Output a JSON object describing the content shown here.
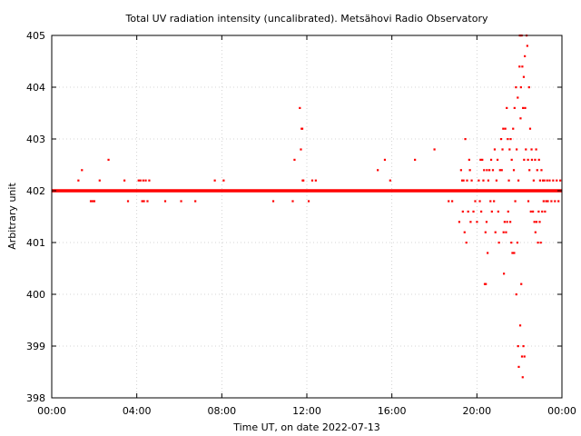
{
  "chart_data": {
    "type": "scatter",
    "title": "Total UV radiation intensity (uncalibrated). Metsähovi Radio Observatory",
    "xlabel": "Time UT, on date 2022-07-13",
    "ylabel": "Arbitrary unit",
    "xlim": [
      "00:00",
      "24:00"
    ],
    "ylim": [
      398,
      405
    ],
    "grid": true,
    "marker_color": "#ff0000",
    "x_ticks": [
      "00:00",
      "04:00",
      "08:00",
      "12:00",
      "16:00",
      "20:00",
      "00:00"
    ],
    "y_ticks": [
      "398",
      "399",
      "400",
      "401",
      "402",
      "403",
      "404",
      "405"
    ],
    "baseline": {
      "value": 402.0,
      "from": "00:00",
      "to": "24:00"
    },
    "points": [
      {
        "x": "01:15",
        "y": 402.2
      },
      {
        "x": "01:25",
        "y": 402.4
      },
      {
        "x": "01:50",
        "y": 401.8
      },
      {
        "x": "01:55",
        "y": 401.8
      },
      {
        "x": "02:00",
        "y": 401.8
      },
      {
        "x": "02:15",
        "y": 402.2
      },
      {
        "x": "02:40",
        "y": 402.6
      },
      {
        "x": "03:25",
        "y": 402.2
      },
      {
        "x": "03:35",
        "y": 401.8
      },
      {
        "x": "04:05",
        "y": 402.2
      },
      {
        "x": "04:10",
        "y": 402.2
      },
      {
        "x": "04:15",
        "y": 401.8
      },
      {
        "x": "04:18",
        "y": 402.2
      },
      {
        "x": "04:20",
        "y": 401.8
      },
      {
        "x": "04:25",
        "y": 402.2
      },
      {
        "x": "04:30",
        "y": 401.8
      },
      {
        "x": "04:35",
        "y": 402.2
      },
      {
        "x": "05:20",
        "y": 401.8
      },
      {
        "x": "06:05",
        "y": 401.8
      },
      {
        "x": "06:45",
        "y": 401.8
      },
      {
        "x": "07:40",
        "y": 402.2
      },
      {
        "x": "08:05",
        "y": 402.2
      },
      {
        "x": "10:25",
        "y": 401.8
      },
      {
        "x": "11:20",
        "y": 401.8
      },
      {
        "x": "11:25",
        "y": 402.6
      },
      {
        "x": "11:40",
        "y": 403.6
      },
      {
        "x": "11:43",
        "y": 402.8
      },
      {
        "x": "11:45",
        "y": 403.2
      },
      {
        "x": "11:47",
        "y": 403.2
      },
      {
        "x": "11:48",
        "y": 402.2
      },
      {
        "x": "11:50",
        "y": 402.2
      },
      {
        "x": "12:05",
        "y": 401.8
      },
      {
        "x": "12:15",
        "y": 402.2
      },
      {
        "x": "12:25",
        "y": 402.2
      },
      {
        "x": "15:20",
        "y": 402.4
      },
      {
        "x": "15:40",
        "y": 402.6
      },
      {
        "x": "15:55",
        "y": 402.2
      },
      {
        "x": "17:05",
        "y": 402.6
      },
      {
        "x": "18:00",
        "y": 402.8
      },
      {
        "x": "18:40",
        "y": 401.8
      },
      {
        "x": "18:50",
        "y": 401.8
      },
      {
        "x": "19:10",
        "y": 401.4
      },
      {
        "x": "19:15",
        "y": 402.4
      },
      {
        "x": "19:18",
        "y": 402.2
      },
      {
        "x": "19:20",
        "y": 401.6
      },
      {
        "x": "19:22",
        "y": 402.2
      },
      {
        "x": "19:25",
        "y": 401.2
      },
      {
        "x": "19:27",
        "y": 403.0
      },
      {
        "x": "19:30",
        "y": 401.0
      },
      {
        "x": "19:32",
        "y": 402.2
      },
      {
        "x": "19:35",
        "y": 401.6
      },
      {
        "x": "19:38",
        "y": 402.6
      },
      {
        "x": "19:40",
        "y": 402.4
      },
      {
        "x": "19:42",
        "y": 401.4
      },
      {
        "x": "19:45",
        "y": 402.2
      },
      {
        "x": "19:50",
        "y": 401.6
      },
      {
        "x": "19:55",
        "y": 401.8
      },
      {
        "x": "20:00",
        "y": 401.4
      },
      {
        "x": "20:05",
        "y": 402.2
      },
      {
        "x": "20:08",
        "y": 401.8
      },
      {
        "x": "20:10",
        "y": 402.6
      },
      {
        "x": "20:12",
        "y": 401.6
      },
      {
        "x": "20:15",
        "y": 402.6
      },
      {
        "x": "20:18",
        "y": 402.2
      },
      {
        "x": "20:20",
        "y": 402.4
      },
      {
        "x": "20:22",
        "y": 400.2
      },
      {
        "x": "20:24",
        "y": 401.2
      },
      {
        "x": "20:25",
        "y": 400.2
      },
      {
        "x": "20:27",
        "y": 401.4
      },
      {
        "x": "20:28",
        "y": 402.4
      },
      {
        "x": "20:30",
        "y": 400.8
      },
      {
        "x": "20:32",
        "y": 402.2
      },
      {
        "x": "20:35",
        "y": 402.4
      },
      {
        "x": "20:38",
        "y": 401.8
      },
      {
        "x": "20:40",
        "y": 402.6
      },
      {
        "x": "20:42",
        "y": 401.6
      },
      {
        "x": "20:45",
        "y": 402.4
      },
      {
        "x": "20:48",
        "y": 401.8
      },
      {
        "x": "20:50",
        "y": 402.8
      },
      {
        "x": "20:52",
        "y": 401.2
      },
      {
        "x": "20:55",
        "y": 402.2
      },
      {
        "x": "20:58",
        "y": 402.6
      },
      {
        "x": "21:00",
        "y": 401.6
      },
      {
        "x": "21:02",
        "y": 401.0
      },
      {
        "x": "21:05",
        "y": 402.4
      },
      {
        "x": "21:08",
        "y": 403.0
      },
      {
        "x": "21:10",
        "y": 402.4
      },
      {
        "x": "21:12",
        "y": 402.8
      },
      {
        "x": "21:14",
        "y": 403.2
      },
      {
        "x": "21:15",
        "y": 401.2
      },
      {
        "x": "21:16",
        "y": 400.4
      },
      {
        "x": "21:18",
        "y": 401.4
      },
      {
        "x": "21:20",
        "y": 403.2
      },
      {
        "x": "21:22",
        "y": 401.2
      },
      {
        "x": "21:24",
        "y": 403.6
      },
      {
        "x": "21:25",
        "y": 401.4
      },
      {
        "x": "21:27",
        "y": 403.0
      },
      {
        "x": "21:28",
        "y": 401.6
      },
      {
        "x": "21:30",
        "y": 402.2
      },
      {
        "x": "21:32",
        "y": 402.8
      },
      {
        "x": "21:34",
        "y": 401.4
      },
      {
        "x": "21:35",
        "y": 403.0
      },
      {
        "x": "21:37",
        "y": 401.0
      },
      {
        "x": "21:38",
        "y": 402.6
      },
      {
        "x": "21:40",
        "y": 400.8
      },
      {
        "x": "21:42",
        "y": 403.2
      },
      {
        "x": "21:44",
        "y": 402.4
      },
      {
        "x": "21:45",
        "y": 400.8
      },
      {
        "x": "21:46",
        "y": 403.6
      },
      {
        "x": "21:48",
        "y": 401.8
      },
      {
        "x": "21:50",
        "y": 404.0
      },
      {
        "x": "21:51",
        "y": 400.0
      },
      {
        "x": "21:52",
        "y": 402.8
      },
      {
        "x": "21:54",
        "y": 401.0
      },
      {
        "x": "21:55",
        "y": 403.8
      },
      {
        "x": "21:56",
        "y": 399.0
      },
      {
        "x": "21:57",
        "y": 402.2
      },
      {
        "x": "21:58",
        "y": 398.6
      },
      {
        "x": "22:00",
        "y": 404.4
      },
      {
        "x": "22:01",
        "y": 405.0
      },
      {
        "x": "22:02",
        "y": 399.4
      },
      {
        "x": "22:03",
        "y": 403.4
      },
      {
        "x": "22:04",
        "y": 404.0
      },
      {
        "x": "22:05",
        "y": 400.2
      },
      {
        "x": "22:06",
        "y": 405.0
      },
      {
        "x": "22:07",
        "y": 398.8
      },
      {
        "x": "22:08",
        "y": 404.4
      },
      {
        "x": "22:09",
        "y": 398.4
      },
      {
        "x": "22:10",
        "y": 403.6
      },
      {
        "x": "22:11",
        "y": 399.0
      },
      {
        "x": "22:12",
        "y": 404.2
      },
      {
        "x": "22:13",
        "y": 402.6
      },
      {
        "x": "22:14",
        "y": 398.8
      },
      {
        "x": "22:15",
        "y": 404.6
      },
      {
        "x": "22:16",
        "y": 403.6
      },
      {
        "x": "22:18",
        "y": 402.8
      },
      {
        "x": "22:20",
        "y": 405.0
      },
      {
        "x": "22:22",
        "y": 404.8
      },
      {
        "x": "22:24",
        "y": 402.6
      },
      {
        "x": "22:25",
        "y": 401.8
      },
      {
        "x": "22:27",
        "y": 404.0
      },
      {
        "x": "22:28",
        "y": 402.4
      },
      {
        "x": "22:30",
        "y": 403.2
      },
      {
        "x": "22:32",
        "y": 401.6
      },
      {
        "x": "22:34",
        "y": 402.8
      },
      {
        "x": "22:35",
        "y": 402.6
      },
      {
        "x": "22:38",
        "y": 401.6
      },
      {
        "x": "22:40",
        "y": 402.2
      },
      {
        "x": "22:42",
        "y": 401.4
      },
      {
        "x": "22:44",
        "y": 402.6
      },
      {
        "x": "22:45",
        "y": 401.2
      },
      {
        "x": "22:47",
        "y": 402.8
      },
      {
        "x": "22:48",
        "y": 401.4
      },
      {
        "x": "22:50",
        "y": 402.4
      },
      {
        "x": "22:52",
        "y": 401.0
      },
      {
        "x": "22:54",
        "y": 401.6
      },
      {
        "x": "22:55",
        "y": 402.6
      },
      {
        "x": "22:57",
        "y": 401.4
      },
      {
        "x": "22:58",
        "y": 402.2
      },
      {
        "x": "23:00",
        "y": 401.0
      },
      {
        "x": "23:02",
        "y": 402.4
      },
      {
        "x": "23:04",
        "y": 401.6
      },
      {
        "x": "23:06",
        "y": 402.2
      },
      {
        "x": "23:08",
        "y": 401.8
      },
      {
        "x": "23:10",
        "y": 402.2
      },
      {
        "x": "23:12",
        "y": 401.6
      },
      {
        "x": "23:15",
        "y": 401.8
      },
      {
        "x": "23:18",
        "y": 402.2
      },
      {
        "x": "23:20",
        "y": 401.8
      },
      {
        "x": "23:25",
        "y": 402.2
      },
      {
        "x": "23:30",
        "y": 401.8
      },
      {
        "x": "23:35",
        "y": 402.2
      },
      {
        "x": "23:40",
        "y": 401.8
      },
      {
        "x": "23:45",
        "y": 402.2
      },
      {
        "x": "23:50",
        "y": 401.8
      },
      {
        "x": "23:55",
        "y": 402.2
      }
    ]
  }
}
